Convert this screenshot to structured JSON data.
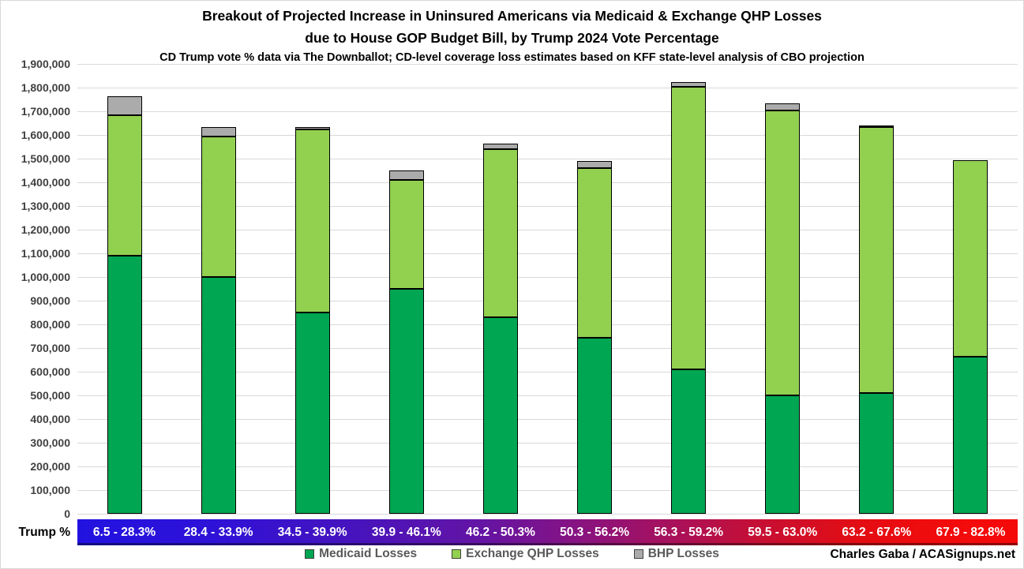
{
  "header": {
    "title_line1": "Breakout of Projected Increase in Uninsured Americans via Medicaid & Exchange QHP Losses",
    "title_line2": "due to House GOP Budget Bill, by Trump 2024 Vote Percentage",
    "subtitle": "CD Trump vote % data via The Downballot; CD-level coverage loss estimates based on KFF state-level analysis of CBO projection"
  },
  "axis": {
    "x_prefix_label": "Trump %"
  },
  "footer": {
    "credit": "Charles Gaba / ACASignups.net"
  },
  "colors": {
    "medicaid": "#00A651",
    "exchange_qhp": "#92D050",
    "bhp": "#ABABAB",
    "gridline": "#D9D9D9",
    "band_gradient_start": "#2212E0",
    "band_gradient_end": "#F50A0A"
  },
  "chart_data": {
    "type": "bar",
    "stacked": true,
    "title": "Breakout of Projected Increase in Uninsured Americans via Medicaid & Exchange QHP Losses due to House GOP Budget Bill, by Trump 2024 Vote Percentage",
    "subtitle": "CD Trump vote % data via The Downballot; CD-level coverage loss estimates based on KFF state-level analysis of CBO projection",
    "xlabel": "Trump %",
    "ylabel": "",
    "ylim": [
      0,
      1900000
    ],
    "ytick_step": 100000,
    "grid": true,
    "legend_position": "bottom",
    "categories": [
      "6.5 - 28.3%",
      "28.4 - 33.9%",
      "34.5 - 39.9%",
      "39.9 - 46.1%",
      "46.2 - 50.3%",
      "50.3 - 56.2%",
      "56.3 - 59.2%",
      "59.5 - 63.0%",
      "63.2 - 67.6%",
      "67.9 - 82.8%"
    ],
    "series": [
      {
        "name": "Medicaid Losses",
        "color": "#00A651",
        "values": [
          1090000,
          1000000,
          850000,
          950000,
          830000,
          745000,
          610000,
          500000,
          510000,
          665000
        ]
      },
      {
        "name": "Exchange QHP Losses",
        "color": "#92D050",
        "values": [
          595000,
          595000,
          775000,
          460000,
          710000,
          715000,
          1195000,
          1205000,
          1125000,
          830000
        ]
      },
      {
        "name": "BHP Losses",
        "color": "#ABABAB",
        "values": [
          80000,
          40000,
          10000,
          40000,
          25000,
          30000,
          20000,
          30000,
          5000,
          0
        ]
      }
    ],
    "stack_totals": [
      1765000,
      1635000,
      1635000,
      1450000,
      1565000,
      1490000,
      1825000,
      1735000,
      1640000,
      1495000
    ]
  }
}
